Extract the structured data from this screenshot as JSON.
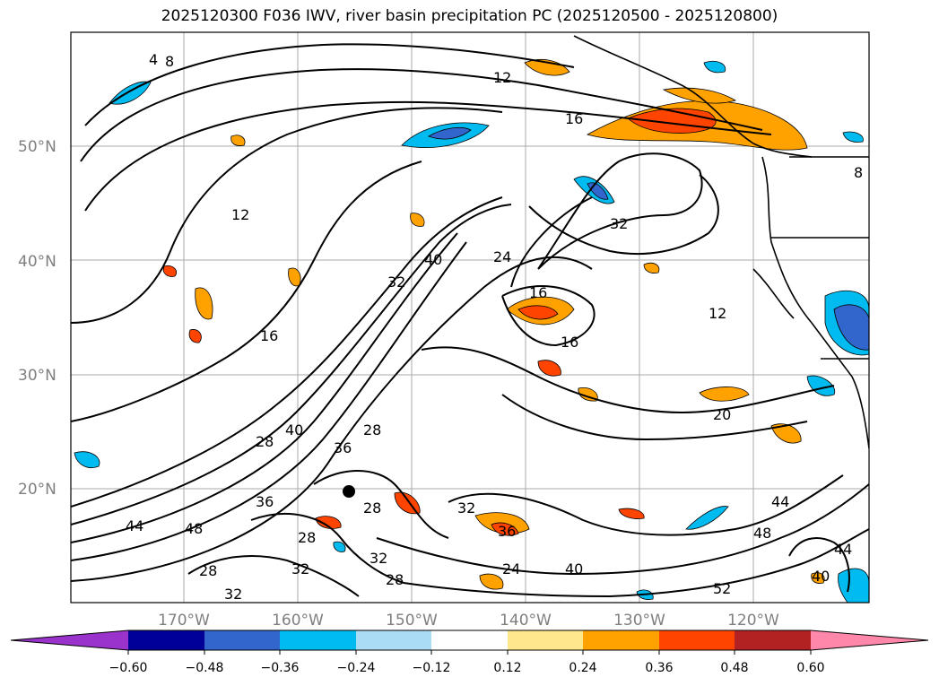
{
  "title": "2025120300 F036 IWV, river basin precipitation PC (2025120500 - 2025120800)",
  "lat_labels": [
    "50°N",
    "40°N",
    "30°N",
    "20°N"
  ],
  "lon_labels": [
    "170°W",
    "160°W",
    "150°W",
    "140°W",
    "130°W",
    "120°W"
  ],
  "contour_labels": [
    "4",
    "8",
    "12",
    "16",
    "16",
    "16",
    "12",
    "24",
    "32",
    "40",
    "32",
    "16",
    "12",
    "20",
    "28",
    "40",
    "36",
    "28",
    "36",
    "44",
    "48",
    "28",
    "32",
    "28",
    "32",
    "28",
    "28",
    "32",
    "24",
    "32",
    "40",
    "36",
    "48",
    "44",
    "52",
    "40",
    "44",
    "8"
  ],
  "colorbar": {
    "ticks": [
      "−0.60",
      "−0.48",
      "−0.36",
      "−0.24",
      "−0.12",
      "0.12",
      "0.24",
      "0.36",
      "0.48",
      "0.60"
    ],
    "colors": [
      "#9933cc",
      "#000099",
      "#3366cc",
      "#00bbf0",
      "#aaddf5",
      "#ffffff",
      "#ffe88c",
      "#ffa200",
      "#ff4400",
      "#b22222",
      "#ff88aa"
    ]
  }
}
